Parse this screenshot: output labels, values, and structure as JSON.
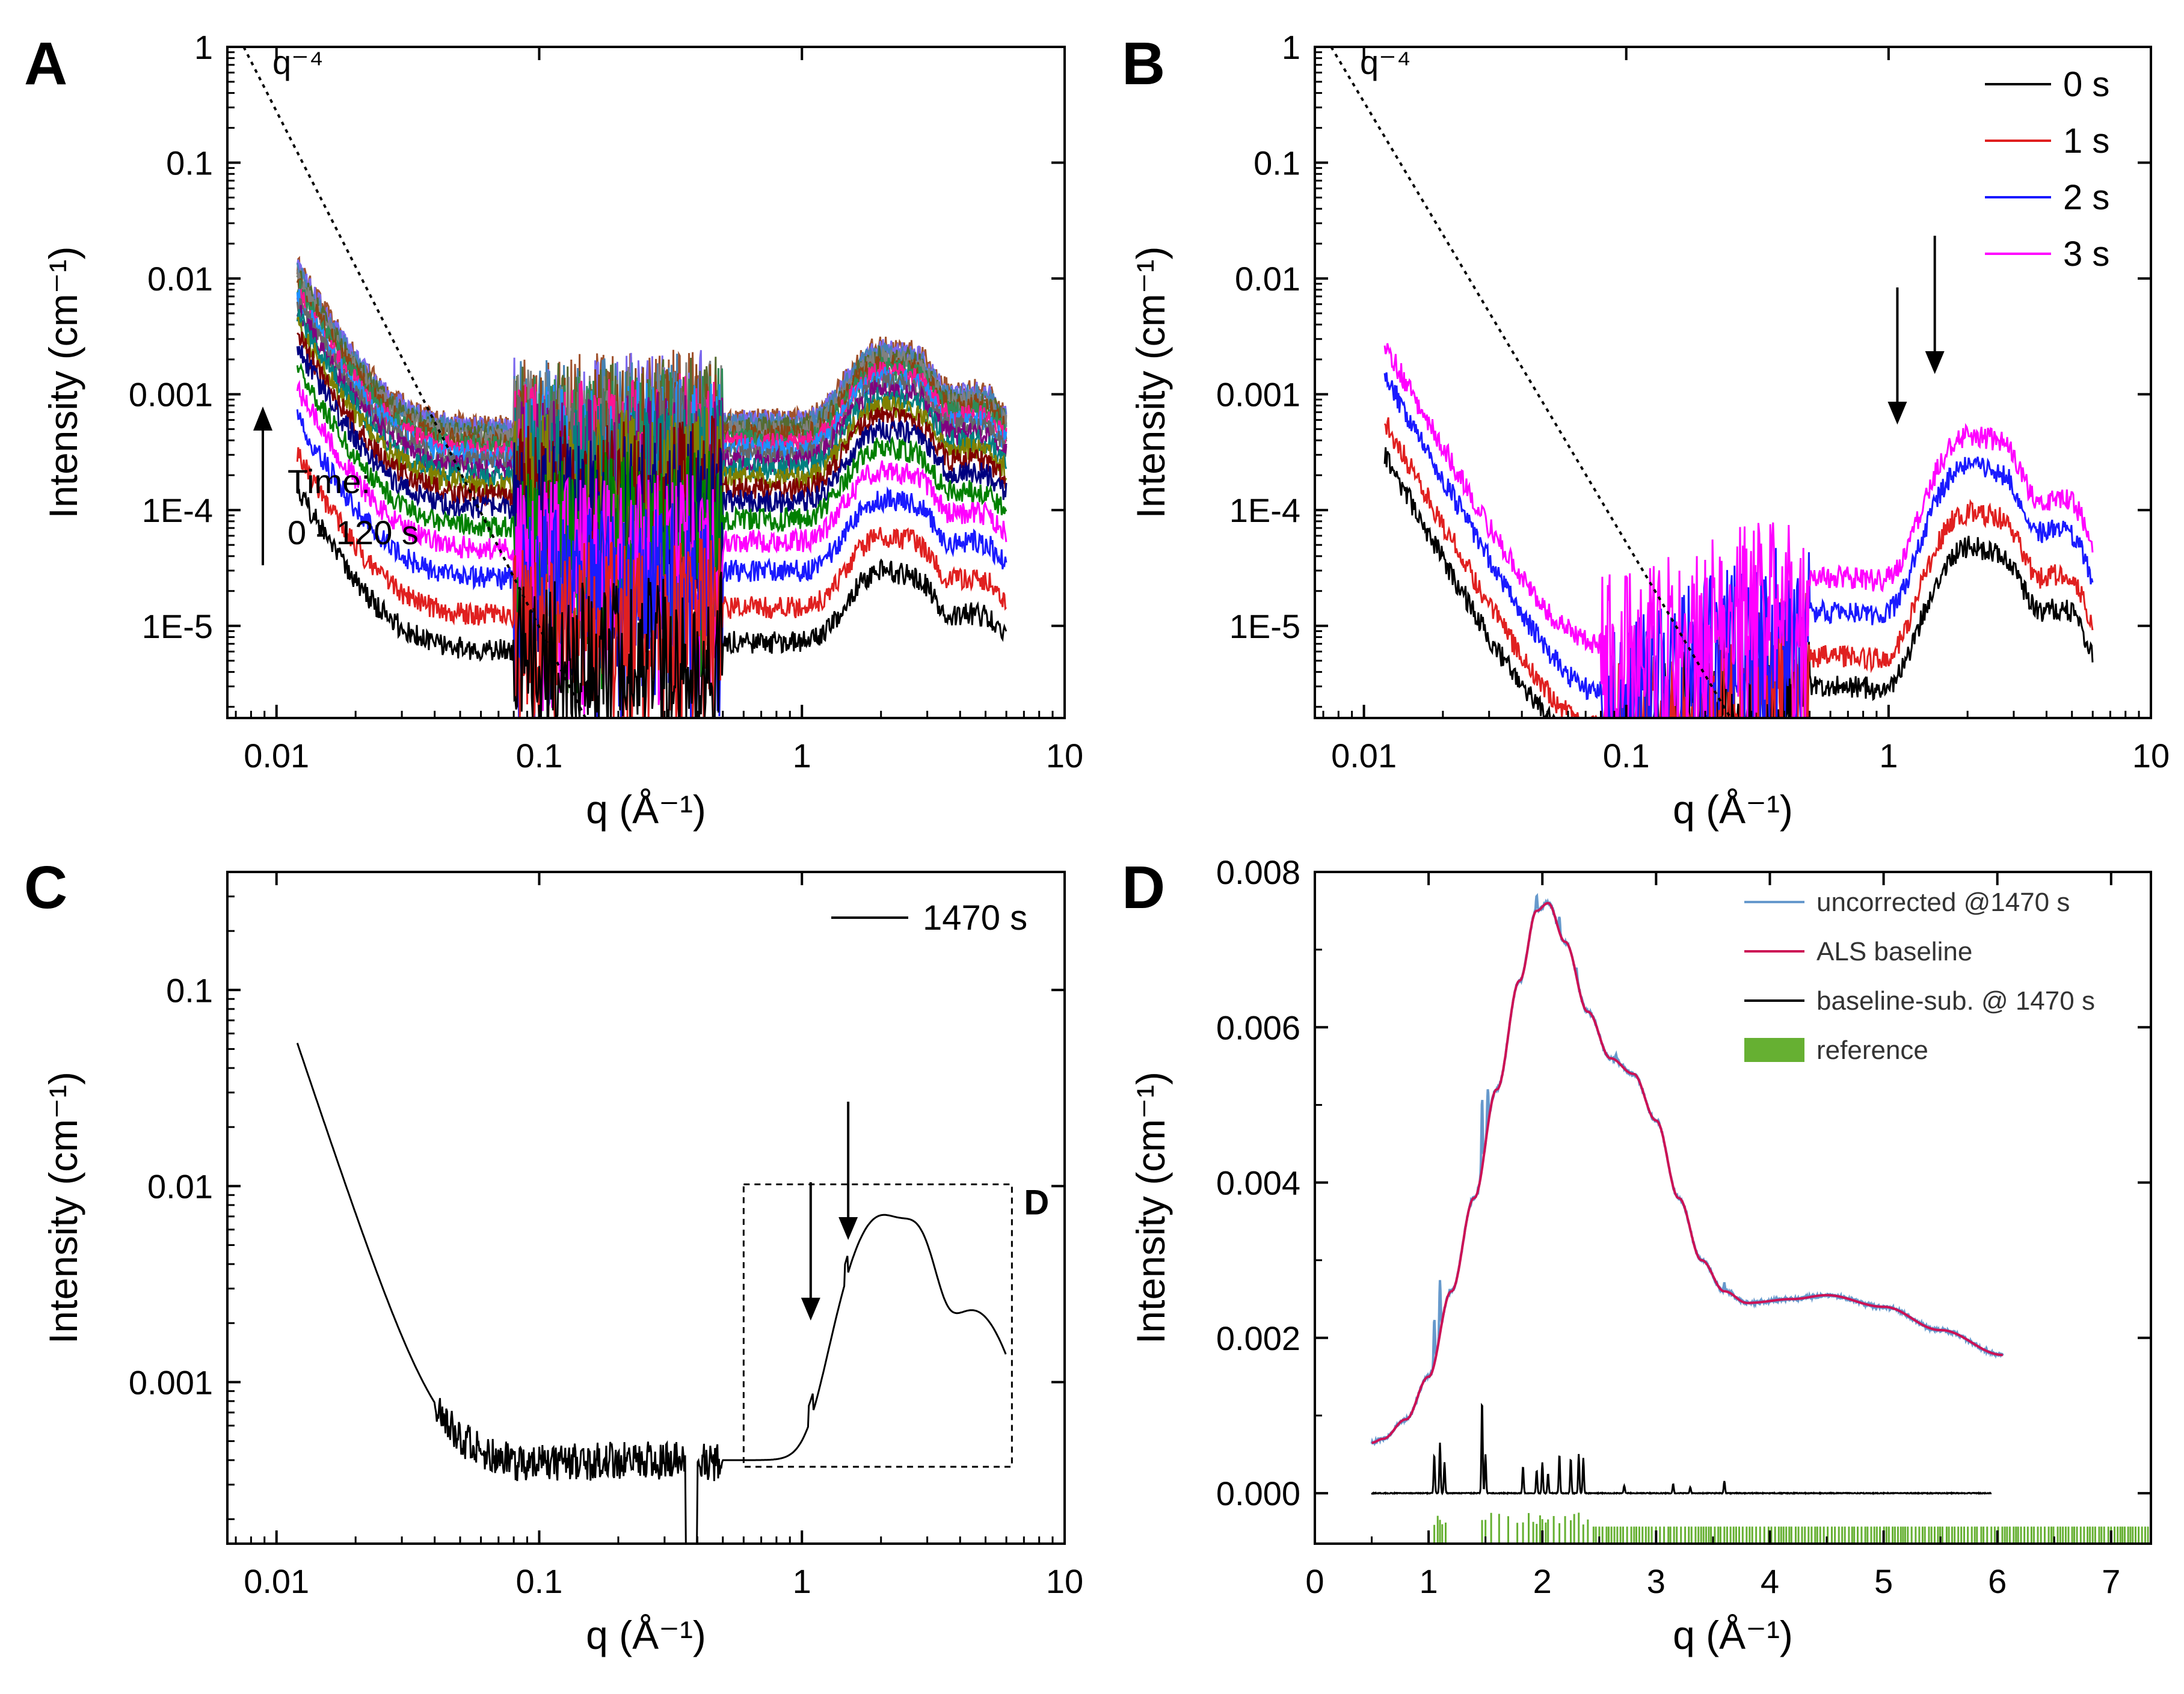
{
  "panels": [
    {
      "id": "A",
      "letter": "A",
      "type": "line",
      "xscale": "log",
      "yscale": "log",
      "xlim": [
        0.0065,
        10
      ],
      "ylim": [
        1.6e-06,
        1
      ],
      "xticks": [
        {
          "v": 0.01,
          "label": "0.01"
        },
        {
          "v": 0.1,
          "label": "0.1"
        },
        {
          "v": 1,
          "label": "1"
        },
        {
          "v": 10,
          "label": "10"
        }
      ],
      "yticks": [
        {
          "v": 1,
          "label": "1"
        },
        {
          "v": 0.1,
          "label": "0.1"
        },
        {
          "v": 0.01,
          "label": "0.01"
        },
        {
          "v": 0.001,
          "label": "0.001"
        },
        {
          "v": 0.0001,
          "label": "1E-4"
        },
        {
          "v": 1e-05,
          "label": "1E-5"
        }
      ],
      "xlabel": "q (Å⁻¹)",
      "ylabel": "Intensity (cm⁻¹)",
      "power_law": {
        "label": "q⁻⁴",
        "from": [
          0.0075,
          1
        ],
        "to": [
          0.15,
          1.6e-06
        ]
      },
      "time_annotation": {
        "line1": "Time:",
        "line2": "0 - 120 s"
      },
      "series_colors": [
        "#000000",
        "#e02020",
        "#1a1aff",
        "#ff00ff",
        "#008000",
        "#000080",
        "#800000",
        "#808000",
        "#008080",
        "#800080",
        "#666666",
        "#1e90ff",
        "#ff1493",
        "#2e8b57",
        "#8b4513",
        "#808080",
        "#556b2f",
        "#4682b4",
        "#7b68ee",
        "#a0522d"
      ],
      "series_scales": [
        0.006,
        0.012,
        0.025,
        0.045,
        0.07,
        0.1,
        0.13,
        0.16,
        0.19,
        0.22,
        0.25,
        0.28,
        0.31,
        0.34,
        0.37,
        0.4,
        0.43,
        0.46,
        0.49,
        0.52
      ]
    },
    {
      "id": "B",
      "letter": "B",
      "type": "line",
      "xscale": "log",
      "yscale": "log",
      "xlim": [
        0.0065,
        10
      ],
      "ylim": [
        1.6e-06,
        1
      ],
      "xticks": [
        {
          "v": 0.01,
          "label": "0.01"
        },
        {
          "v": 0.1,
          "label": "0.1"
        },
        {
          "v": 1,
          "label": "1"
        },
        {
          "v": 10,
          "label": "10"
        }
      ],
      "yticks": [
        {
          "v": 1,
          "label": "1"
        },
        {
          "v": 0.1,
          "label": "0.1"
        },
        {
          "v": 0.01,
          "label": "0.01"
        },
        {
          "v": 0.001,
          "label": "0.001"
        },
        {
          "v": 0.0001,
          "label": "1E-4"
        },
        {
          "v": 1e-05,
          "label": "1E-5"
        }
      ],
      "xlabel": "q (Å⁻¹)",
      "ylabel": "Intensity (cm⁻¹)",
      "power_law": {
        "label": "q⁻⁴",
        "from": [
          0.0075,
          1
        ],
        "to": [
          0.25,
          1.6e-06
        ]
      },
      "legend_position": "top-right",
      "series": [
        {
          "name": "0 s",
          "color": "#000000",
          "scale": 0.006,
          "flat": 0.00011
        },
        {
          "name": "1 s",
          "color": "#e02020",
          "scale": 0.012,
          "flat": 6e-05
        },
        {
          "name": "2 s",
          "color": "#1a1aff",
          "scale": 0.03,
          "flat": 4e-05
        },
        {
          "name": "3 s",
          "color": "#ff00ff",
          "scale": 0.055,
          "flat": 8e-05
        }
      ],
      "arrows": [
        {
          "q": 1.08
        },
        {
          "q": 1.5
        }
      ]
    },
    {
      "id": "C",
      "letter": "C",
      "type": "line",
      "xscale": "log",
      "yscale": "log",
      "xlim": [
        0.0065,
        10
      ],
      "ylim": [
        0.00015,
        0.4
      ],
      "xticks": [
        {
          "v": 0.01,
          "label": "0.01"
        },
        {
          "v": 0.1,
          "label": "0.1"
        },
        {
          "v": 1,
          "label": "1"
        },
        {
          "v": 10,
          "label": "10"
        }
      ],
      "yticks": [
        {
          "v": 0.1,
          "label": "0.1"
        },
        {
          "v": 0.01,
          "label": "0.01"
        },
        {
          "v": 0.001,
          "label": "0.001"
        }
      ],
      "xlabel": "q (Å⁻¹)",
      "ylabel": "Intensity (cm⁻¹)",
      "legend_position": "top-right",
      "series": [
        {
          "name": "1470 s",
          "color": "#000000"
        }
      ],
      "inset_box": {
        "label": "D",
        "qmin": 0.6,
        "qmax": 6.3,
        "imin": 0.00037,
        "imax": 0.0102
      },
      "arrows": [
        {
          "q": 1.08
        },
        {
          "q": 1.5
        }
      ]
    },
    {
      "id": "D",
      "letter": "D",
      "type": "line",
      "xscale": "linear",
      "yscale": "linear",
      "xlim": [
        0,
        7.35
      ],
      "ylim": [
        -0.00065,
        0.008
      ],
      "xticks": [
        {
          "v": 0,
          "label": "0"
        },
        {
          "v": 1,
          "label": "1"
        },
        {
          "v": 2,
          "label": "2"
        },
        {
          "v": 3,
          "label": "3"
        },
        {
          "v": 4,
          "label": "4"
        },
        {
          "v": 5,
          "label": "5"
        },
        {
          "v": 6,
          "label": "6"
        },
        {
          "v": 7,
          "label": "7"
        }
      ],
      "yticks": [
        {
          "v": 0.008,
          "label": "0.008"
        },
        {
          "v": 0.006,
          "label": "0.006"
        },
        {
          "v": 0.004,
          "label": "0.004"
        },
        {
          "v": 0.002,
          "label": "0.002"
        },
        {
          "v": 0,
          "label": "0.000"
        }
      ],
      "xlabel": "q (Å⁻¹)",
      "ylabel": "Intensity (cm⁻¹)",
      "legend_position": "top-right",
      "series": [
        {
          "name": "uncorrected @1470 s",
          "color": "#6699cc"
        },
        {
          "name": "ALS baseline",
          "color": "#cc1155"
        },
        {
          "name": "baseline-sub. @ 1470 s",
          "color": "#000000"
        },
        {
          "name": "reference",
          "color": "#66b032"
        }
      ],
      "als_baseline": [
        [
          0.5,
          0.00065
        ],
        [
          0.6,
          0.0007
        ],
        [
          0.8,
          0.00095
        ],
        [
          1.0,
          0.0015
        ],
        [
          1.2,
          0.0026
        ],
        [
          1.4,
          0.0038
        ],
        [
          1.6,
          0.0052
        ],
        [
          1.8,
          0.0066
        ],
        [
          1.95,
          0.0075
        ],
        [
          2.05,
          0.0076
        ],
        [
          2.2,
          0.0071
        ],
        [
          2.4,
          0.0062
        ],
        [
          2.6,
          0.0056
        ],
        [
          2.8,
          0.0054
        ],
        [
          3.0,
          0.0048
        ],
        [
          3.2,
          0.0038
        ],
        [
          3.4,
          0.003
        ],
        [
          3.6,
          0.0026
        ],
        [
          3.8,
          0.00245
        ],
        [
          4.2,
          0.0025
        ],
        [
          4.5,
          0.00255
        ],
        [
          5.0,
          0.0024
        ],
        [
          5.5,
          0.0021
        ],
        [
          6.05,
          0.00178
        ]
      ],
      "subtracted_peaks": [
        [
          1.05,
          0.0005
        ],
        [
          1.1,
          0.00065
        ],
        [
          1.14,
          0.0004
        ],
        [
          1.47,
          0.0012
        ],
        [
          1.5,
          0.0005
        ],
        [
          1.83,
          0.00035
        ],
        [
          1.95,
          0.0003
        ],
        [
          2.0,
          0.0004
        ],
        [
          2.05,
          0.00025
        ],
        [
          2.15,
          0.0005
        ],
        [
          2.25,
          0.00045
        ],
        [
          2.32,
          0.0005
        ],
        [
          2.36,
          0.00045
        ],
        [
          2.72,
          0.0001
        ],
        [
          3.15,
          0.00012
        ],
        [
          3.3,
          8e-05
        ],
        [
          3.6,
          0.00016
        ]
      ],
      "uncorrected_peaks": [
        [
          1.05,
          0.0006
        ],
        [
          1.1,
          0.0007
        ],
        [
          1.47,
          0.0009
        ],
        [
          1.52,
          0.0005
        ],
        [
          1.95,
          0.0002
        ],
        [
          2.15,
          0.0002
        ],
        [
          2.3,
          0.0001
        ],
        [
          2.65,
          8e-05
        ],
        [
          3.6,
          0.0001
        ]
      ],
      "reference_q": [
        1.05,
        1.08,
        1.1,
        1.12,
        1.15,
        1.47,
        1.5,
        1.55,
        1.62,
        1.7,
        1.78,
        1.83,
        1.88,
        1.92,
        1.95,
        1.98,
        2.0,
        2.03,
        2.05,
        2.1,
        2.15,
        2.2,
        2.25,
        2.28,
        2.32,
        2.36,
        2.4
      ]
    }
  ]
}
